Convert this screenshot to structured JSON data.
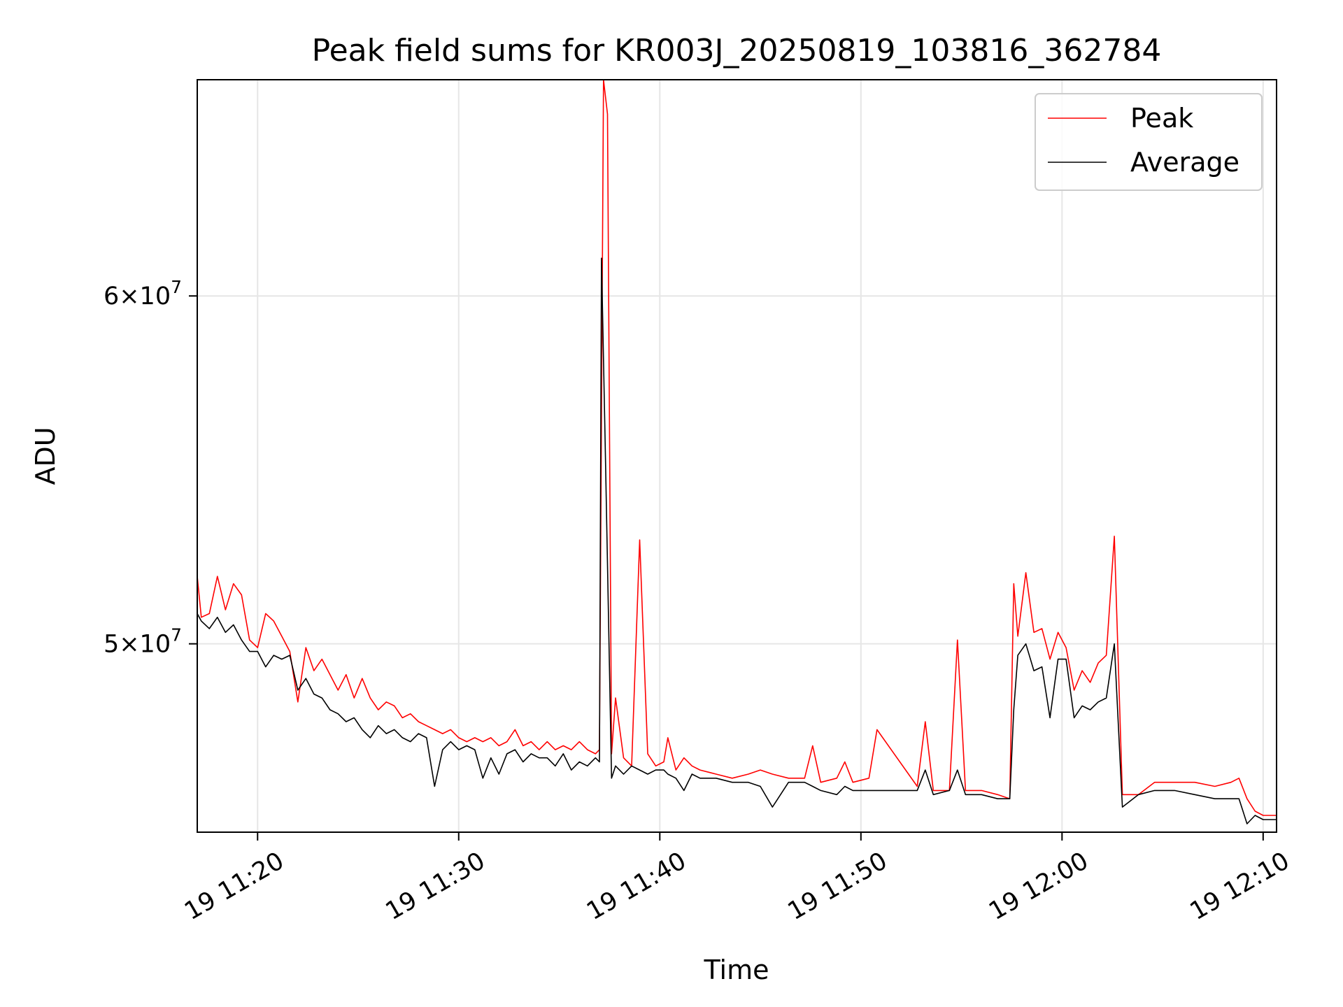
{
  "chart_data": {
    "type": "line",
    "title": "Peak field sums for KR003J_20250819_103816_362784",
    "xlabel": "Time",
    "ylabel": "ADU",
    "x_range": [
      "2025-08-19 11:17:00",
      "2025-08-19 12:10:40"
    ],
    "ylim": [
      45300000,
      67200000
    ],
    "y_scale": "log",
    "grid": true,
    "legend": "top-right",
    "x_ticks": [
      {
        "time": "2025-08-19 11:20:00",
        "label": "19 11:20"
      },
      {
        "time": "2025-08-19 11:30:00",
        "label": "19 11:30"
      },
      {
        "time": "2025-08-19 11:40:00",
        "label": "19 11:40"
      },
      {
        "time": "2025-08-19 11:50:00",
        "label": "19 11:50"
      },
      {
        "time": "2025-08-19 12:00:00",
        "label": "19 12:00"
      },
      {
        "time": "2025-08-19 12:10:00",
        "label": "19 12:10"
      }
    ],
    "y_ticks": [
      {
        "value": 50000000,
        "mantissa": "5",
        "exponent": "7"
      },
      {
        "value": 60000000,
        "mantissa": "6",
        "exponent": "7"
      }
    ],
    "series": [
      {
        "name": "Peak",
        "color": "#ff0000",
        "points": [
          [
            "11:17:00",
            51800000
          ],
          [
            "11:17:12",
            50700000
          ],
          [
            "11:17:36",
            50800000
          ],
          [
            "11:18:00",
            51800000
          ],
          [
            "11:18:24",
            50900000
          ],
          [
            "11:18:48",
            51600000
          ],
          [
            "11:19:12",
            51300000
          ],
          [
            "11:19:36",
            50100000
          ],
          [
            "11:20:00",
            49900000
          ],
          [
            "11:20:24",
            50800000
          ],
          [
            "11:20:48",
            50600000
          ],
          [
            "11:21:12",
            50200000
          ],
          [
            "11:21:36",
            49800000
          ],
          [
            "11:22:00",
            48500000
          ],
          [
            "11:22:24",
            49900000
          ],
          [
            "11:22:48",
            49300000
          ],
          [
            "11:23:12",
            49600000
          ],
          [
            "11:23:36",
            49200000
          ],
          [
            "11:24:00",
            48800000
          ],
          [
            "11:24:24",
            49200000
          ],
          [
            "11:24:48",
            48600000
          ],
          [
            "11:25:12",
            49100000
          ],
          [
            "11:25:36",
            48600000
          ],
          [
            "11:26:00",
            48300000
          ],
          [
            "11:26:24",
            48500000
          ],
          [
            "11:26:48",
            48400000
          ],
          [
            "11:27:12",
            48100000
          ],
          [
            "11:27:36",
            48200000
          ],
          [
            "11:28:00",
            48000000
          ],
          [
            "11:28:24",
            47900000
          ],
          [
            "11:28:48",
            47800000
          ],
          [
            "11:29:12",
            47700000
          ],
          [
            "11:29:36",
            47800000
          ],
          [
            "11:30:00",
            47600000
          ],
          [
            "11:30:24",
            47500000
          ],
          [
            "11:30:48",
            47600000
          ],
          [
            "11:31:12",
            47500000
          ],
          [
            "11:31:36",
            47600000
          ],
          [
            "11:32:00",
            47400000
          ],
          [
            "11:32:24",
            47500000
          ],
          [
            "11:32:48",
            47800000
          ],
          [
            "11:33:12",
            47400000
          ],
          [
            "11:33:36",
            47500000
          ],
          [
            "11:34:00",
            47300000
          ],
          [
            "11:34:24",
            47500000
          ],
          [
            "11:34:48",
            47300000
          ],
          [
            "11:35:12",
            47400000
          ],
          [
            "11:35:36",
            47300000
          ],
          [
            "11:36:00",
            47500000
          ],
          [
            "11:36:24",
            47300000
          ],
          [
            "11:36:48",
            47200000
          ],
          [
            "11:37:00",
            47300000
          ],
          [
            "11:37:12",
            67200000
          ],
          [
            "11:37:24",
            66000000
          ],
          [
            "11:37:36",
            47200000
          ],
          [
            "11:37:48",
            48600000
          ],
          [
            "11:38:12",
            47100000
          ],
          [
            "11:38:36",
            46900000
          ],
          [
            "11:39:00",
            52800000
          ],
          [
            "11:39:24",
            47200000
          ],
          [
            "11:39:48",
            46900000
          ],
          [
            "11:40:12",
            47000000
          ],
          [
            "11:40:24",
            47600000
          ],
          [
            "11:40:48",
            46800000
          ],
          [
            "11:41:12",
            47100000
          ],
          [
            "11:41:36",
            46900000
          ],
          [
            "11:42:00",
            46800000
          ],
          [
            "11:42:48",
            46700000
          ],
          [
            "11:43:36",
            46600000
          ],
          [
            "11:44:24",
            46700000
          ],
          [
            "11:45:00",
            46800000
          ],
          [
            "11:45:36",
            46700000
          ],
          [
            "11:46:24",
            46600000
          ],
          [
            "11:47:12",
            46600000
          ],
          [
            "11:47:36",
            47400000
          ],
          [
            "11:48:00",
            46500000
          ],
          [
            "11:48:48",
            46600000
          ],
          [
            "11:49:12",
            47000000
          ],
          [
            "11:49:36",
            46500000
          ],
          [
            "11:50:24",
            46600000
          ],
          [
            "11:50:48",
            47800000
          ],
          [
            "11:52:48",
            46400000
          ],
          [
            "11:53:12",
            48000000
          ],
          [
            "11:53:36",
            46300000
          ],
          [
            "11:54:24",
            46300000
          ],
          [
            "11:54:48",
            50100000
          ],
          [
            "11:55:12",
            46300000
          ],
          [
            "11:56:00",
            46300000
          ],
          [
            "11:56:48",
            46200000
          ],
          [
            "11:57:24",
            46100000
          ],
          [
            "11:57:36",
            51600000
          ],
          [
            "11:57:48",
            50200000
          ],
          [
            "11:58:12",
            51900000
          ],
          [
            "11:58:36",
            50300000
          ],
          [
            "11:59:00",
            50400000
          ],
          [
            "11:59:24",
            49600000
          ],
          [
            "11:59:48",
            50300000
          ],
          [
            "12:00:12",
            49900000
          ],
          [
            "12:00:36",
            48800000
          ],
          [
            "12:01:00",
            49300000
          ],
          [
            "12:01:24",
            49000000
          ],
          [
            "12:01:48",
            49500000
          ],
          [
            "12:02:12",
            49700000
          ],
          [
            "12:02:36",
            52900000
          ],
          [
            "12:03:00",
            46200000
          ],
          [
            "12:03:48",
            46200000
          ],
          [
            "12:04:36",
            46500000
          ],
          [
            "12:05:36",
            46500000
          ],
          [
            "12:06:36",
            46500000
          ],
          [
            "12:07:36",
            46400000
          ],
          [
            "12:08:24",
            46500000
          ],
          [
            "12:08:48",
            46600000
          ],
          [
            "12:09:12",
            46100000
          ],
          [
            "12:09:36",
            45800000
          ],
          [
            "12:10:00",
            45700000
          ],
          [
            "12:10:40",
            45700000
          ]
        ]
      },
      {
        "name": "Average",
        "color": "#000000",
        "points": [
          [
            "11:17:00",
            50800000
          ],
          [
            "11:17:12",
            50600000
          ],
          [
            "11:17:36",
            50400000
          ],
          [
            "11:18:00",
            50700000
          ],
          [
            "11:18:24",
            50300000
          ],
          [
            "11:18:48",
            50500000
          ],
          [
            "11:19:12",
            50100000
          ],
          [
            "11:19:36",
            49800000
          ],
          [
            "11:20:00",
            49800000
          ],
          [
            "11:20:24",
            49400000
          ],
          [
            "11:20:48",
            49700000
          ],
          [
            "11:21:12",
            49600000
          ],
          [
            "11:21:36",
            49700000
          ],
          [
            "11:22:00",
            48800000
          ],
          [
            "11:22:24",
            49100000
          ],
          [
            "11:22:48",
            48700000
          ],
          [
            "11:23:12",
            48600000
          ],
          [
            "11:23:36",
            48300000
          ],
          [
            "11:24:00",
            48200000
          ],
          [
            "11:24:24",
            48000000
          ],
          [
            "11:24:48",
            48100000
          ],
          [
            "11:25:12",
            47800000
          ],
          [
            "11:25:36",
            47600000
          ],
          [
            "11:26:00",
            47900000
          ],
          [
            "11:26:24",
            47700000
          ],
          [
            "11:26:48",
            47800000
          ],
          [
            "11:27:12",
            47600000
          ],
          [
            "11:27:36",
            47500000
          ],
          [
            "11:28:00",
            47700000
          ],
          [
            "11:28:24",
            47600000
          ],
          [
            "11:28:48",
            46400000
          ],
          [
            "11:29:12",
            47300000
          ],
          [
            "11:29:36",
            47500000
          ],
          [
            "11:30:00",
            47300000
          ],
          [
            "11:30:24",
            47400000
          ],
          [
            "11:30:48",
            47300000
          ],
          [
            "11:31:12",
            46600000
          ],
          [
            "11:31:36",
            47100000
          ],
          [
            "11:32:00",
            46700000
          ],
          [
            "11:32:24",
            47200000
          ],
          [
            "11:32:48",
            47300000
          ],
          [
            "11:33:12",
            47000000
          ],
          [
            "11:33:36",
            47200000
          ],
          [
            "11:34:00",
            47100000
          ],
          [
            "11:34:24",
            47100000
          ],
          [
            "11:34:48",
            46900000
          ],
          [
            "11:35:12",
            47200000
          ],
          [
            "11:35:36",
            46800000
          ],
          [
            "11:36:00",
            47000000
          ],
          [
            "11:36:24",
            46900000
          ],
          [
            "11:36:48",
            47100000
          ],
          [
            "11:37:00",
            47000000
          ],
          [
            "11:37:06",
            61200000
          ],
          [
            "11:37:18",
            55000000
          ],
          [
            "11:37:36",
            46600000
          ],
          [
            "11:37:48",
            46900000
          ],
          [
            "11:38:12",
            46700000
          ],
          [
            "11:38:36",
            46900000
          ],
          [
            "11:39:00",
            46800000
          ],
          [
            "11:39:24",
            46700000
          ],
          [
            "11:39:48",
            46800000
          ],
          [
            "11:40:12",
            46800000
          ],
          [
            "11:40:24",
            46700000
          ],
          [
            "11:40:48",
            46600000
          ],
          [
            "11:41:12",
            46300000
          ],
          [
            "11:41:36",
            46700000
          ],
          [
            "11:42:00",
            46600000
          ],
          [
            "11:42:48",
            46600000
          ],
          [
            "11:43:36",
            46500000
          ],
          [
            "11:44:24",
            46500000
          ],
          [
            "11:45:00",
            46400000
          ],
          [
            "11:45:36",
            45900000
          ],
          [
            "11:46:24",
            46500000
          ],
          [
            "11:47:12",
            46500000
          ],
          [
            "11:47:36",
            46400000
          ],
          [
            "11:48:00",
            46300000
          ],
          [
            "11:48:48",
            46200000
          ],
          [
            "11:49:12",
            46400000
          ],
          [
            "11:49:36",
            46300000
          ],
          [
            "11:50:24",
            46300000
          ],
          [
            "11:50:48",
            46300000
          ],
          [
            "11:52:48",
            46300000
          ],
          [
            "11:53:12",
            46800000
          ],
          [
            "11:53:36",
            46200000
          ],
          [
            "11:54:24",
            46300000
          ],
          [
            "11:54:48",
            46800000
          ],
          [
            "11:55:12",
            46200000
          ],
          [
            "11:56:00",
            46200000
          ],
          [
            "11:56:48",
            46100000
          ],
          [
            "11:57:24",
            46100000
          ],
          [
            "11:57:36",
            48300000
          ],
          [
            "11:57:48",
            49700000
          ],
          [
            "11:58:12",
            50000000
          ],
          [
            "11:58:36",
            49300000
          ],
          [
            "11:59:00",
            49400000
          ],
          [
            "11:59:24",
            48100000
          ],
          [
            "11:59:48",
            49600000
          ],
          [
            "12:00:12",
            49600000
          ],
          [
            "12:00:36",
            48100000
          ],
          [
            "12:01:00",
            48400000
          ],
          [
            "12:01:24",
            48300000
          ],
          [
            "12:01:48",
            48500000
          ],
          [
            "12:02:12",
            48600000
          ],
          [
            "12:02:36",
            50000000
          ],
          [
            "12:03:00",
            45900000
          ],
          [
            "12:03:48",
            46200000
          ],
          [
            "12:04:36",
            46300000
          ],
          [
            "12:05:36",
            46300000
          ],
          [
            "12:06:36",
            46200000
          ],
          [
            "12:07:36",
            46100000
          ],
          [
            "12:08:24",
            46100000
          ],
          [
            "12:08:48",
            46100000
          ],
          [
            "12:09:12",
            45500000
          ],
          [
            "12:09:36",
            45700000
          ],
          [
            "12:10:00",
            45600000
          ],
          [
            "12:10:40",
            45600000
          ]
        ]
      }
    ]
  }
}
